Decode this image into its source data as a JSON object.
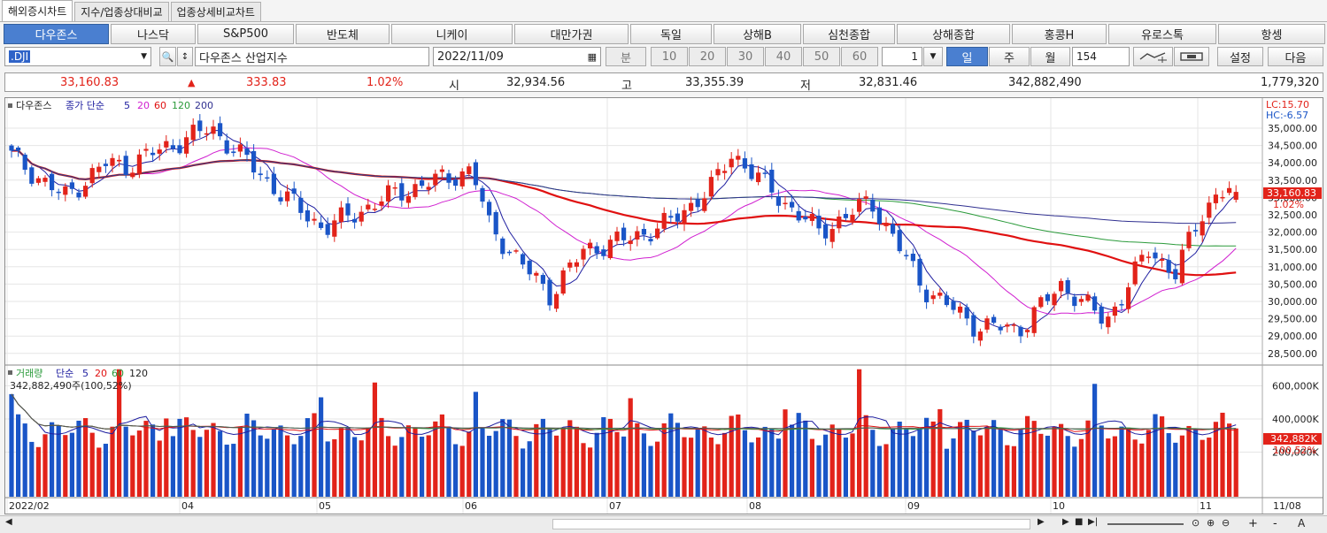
{
  "tabs": [
    "해외증시차트",
    "지수/업종상대비교",
    "업종상세비교차트"
  ],
  "markets": [
    "다우존스",
    "나스닥",
    "S&P500",
    "반도체",
    "니케이",
    "대만가권",
    "독일",
    "상해B",
    "심천종합",
    "상해종합",
    "홍콩H",
    "유로스톡",
    "항셍"
  ],
  "toolbar": {
    "symbol": ".DJI",
    "name": "다우존스 산업지수",
    "date": "2022/11/09",
    "min_label": "분",
    "periods": [
      "10",
      "20",
      "30",
      "40",
      "50",
      "60"
    ],
    "period_sel": "1",
    "day": "일",
    "week": "주",
    "month": "월",
    "count": "154",
    "settings": "설정",
    "next": "다음"
  },
  "quote": {
    "price": "33,160.83",
    "arrow": "▲",
    "change": "333.83",
    "pct": "1.02%",
    "open_l": "시",
    "open": "32,934.56",
    "high_l": "고",
    "high": "33,355.39",
    "low_l": "저",
    "low": "32,831.46",
    "volume": "342,882,490",
    "amount": "1,779,320"
  },
  "price_legend": {
    "name": "다우존스",
    "kind": "종가 단순",
    "p5": "5",
    "p20": "20",
    "p60": "60",
    "p120": "120",
    "p200": "200"
  },
  "vol_legend": {
    "name": "거래량",
    "kind": "단순",
    "p5": "5",
    "p20": "20",
    "p60": "60",
    "p120": "120",
    "value": "342,882,490주(100,52%)"
  },
  "axis": {
    "lc": "LC:15.70",
    "hc": "HC:-6.57",
    "last_price": "33,160.83",
    "last_pct": "1.02%",
    "vol_last": "342,882K",
    "vol_pct": "100,52%",
    "price_ticks": [
      "35,000.00",
      "34,500.00",
      "34,000.00",
      "33,500.00",
      "33,000.00",
      "32,500.00",
      "32,000.00",
      "31,500.00",
      "31,000.00",
      "30,500.00",
      "30,000.00",
      "29,500.00",
      "29,000.00",
      "28,500.00"
    ],
    "vol_ticks": [
      "600,000K",
      "400,000K",
      "200,000K"
    ],
    "dates": [
      "2022/02",
      "04",
      "05",
      "06",
      "07",
      "08",
      "09",
      "10",
      "11"
    ],
    "date_end": "11/08"
  },
  "colors": {
    "up": "#e2231a",
    "down": "#1a55c7",
    "ma5": "#1e1ea0",
    "ma20": "#d020d0",
    "ma60": "#e01010",
    "ma120": "#2a9a3a",
    "ma200": "#303090"
  },
  "chart_data": {
    "type": "candlestick",
    "title": "다우존스 산업지수",
    "y_ticks": [
      35000,
      34500,
      34000,
      33500,
      33000,
      32500,
      32000,
      31500,
      31000,
      30500,
      30000,
      29500,
      29000,
      28500
    ],
    "close_trend": [
      {
        "x": "2022/02",
        "y": 34200
      },
      {
        "x": "2022/03",
        "y": 33000
      },
      {
        "x": "2022/04",
        "y": 34800
      },
      {
        "x": "2022/05",
        "y": 32300
      },
      {
        "x": "2022/06",
        "y": 30500
      },
      {
        "x": "2022/07",
        "y": 31900
      },
      {
        "x": "2022/08",
        "y": 33800
      },
      {
        "x": "2022/09",
        "y": 29300
      },
      {
        "x": "2022/10",
        "y": 31500
      },
      {
        "x": "2022/11/09",
        "y": 33160.83
      }
    ],
    "last": {
      "open": 32934.56,
      "high": 33355.39,
      "low": 32831.46,
      "close": 33160.83,
      "volume": 342882490
    }
  }
}
